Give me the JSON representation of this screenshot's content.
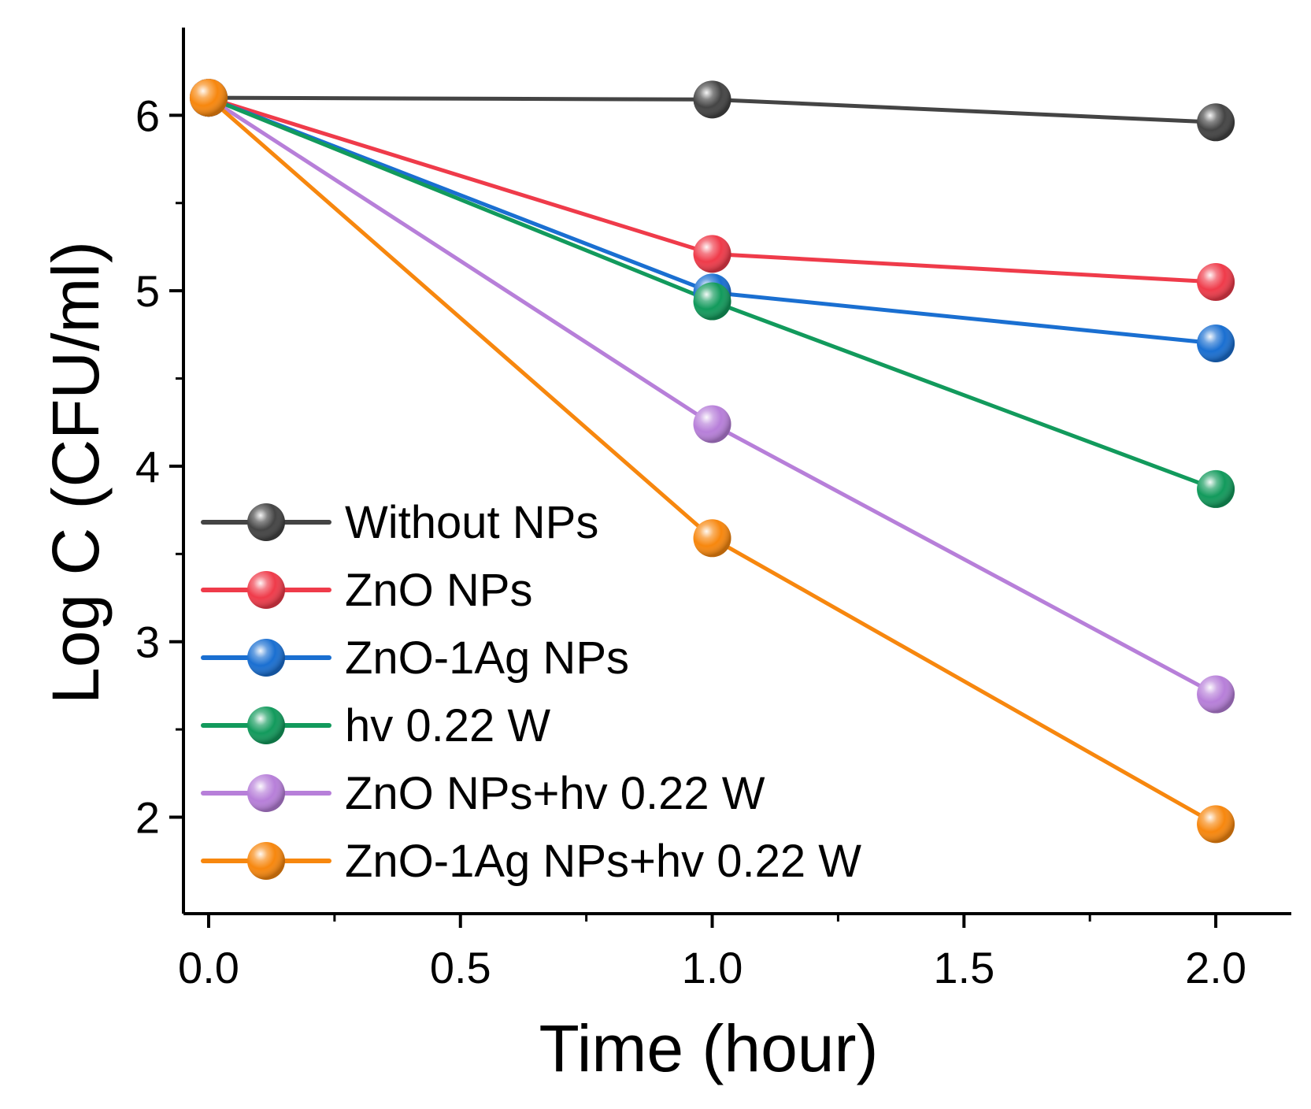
{
  "chart_data": {
    "type": "line",
    "title": "",
    "xlabel": "Time (hour)",
    "ylabel": "Log C (CFU/ml)",
    "xlim": [
      -0.05,
      2.15
    ],
    "ylim": [
      1.45,
      6.5
    ],
    "x_ticks": [
      0.0,
      0.5,
      1.0,
      1.5,
      2.0
    ],
    "x_tick_labels": [
      "0.0",
      "0.5",
      "1.0",
      "1.5",
      "2.0"
    ],
    "x_minor_ticks": [
      0.25,
      0.75,
      1.25,
      1.75
    ],
    "y_ticks": [
      2,
      3,
      4,
      5,
      6
    ],
    "y_tick_labels": [
      "2",
      "3",
      "4",
      "5",
      "6"
    ],
    "y_minor_ticks": [
      2.5,
      3.5,
      4.5,
      5.5
    ],
    "grid": false,
    "legend_position": "lower-left",
    "x": [
      0,
      1,
      2
    ],
    "series": [
      {
        "name": "Without NPs",
        "color": "#444444",
        "values": [
          6.1,
          6.09,
          5.96
        ]
      },
      {
        "name": "ZnO NPs",
        "color": "#ef3b4a",
        "values": [
          6.1,
          5.21,
          5.05
        ]
      },
      {
        "name": "ZnO-1Ag NPs",
        "color": "#1a6fd1",
        "values": [
          6.1,
          4.99,
          4.7
        ]
      },
      {
        "name": "hv 0.22 W",
        "color": "#129a5c",
        "values": [
          6.1,
          4.94,
          3.87
        ]
      },
      {
        "name": "ZnO NPs+hv 0.22 W",
        "color": "#b77fd9",
        "values": [
          6.1,
          4.24,
          2.7
        ]
      },
      {
        "name": "ZnO-1Ag NPs+hv 0.22 W",
        "color": "#f7870e",
        "values": [
          6.1,
          3.59,
          1.96
        ]
      }
    ]
  }
}
